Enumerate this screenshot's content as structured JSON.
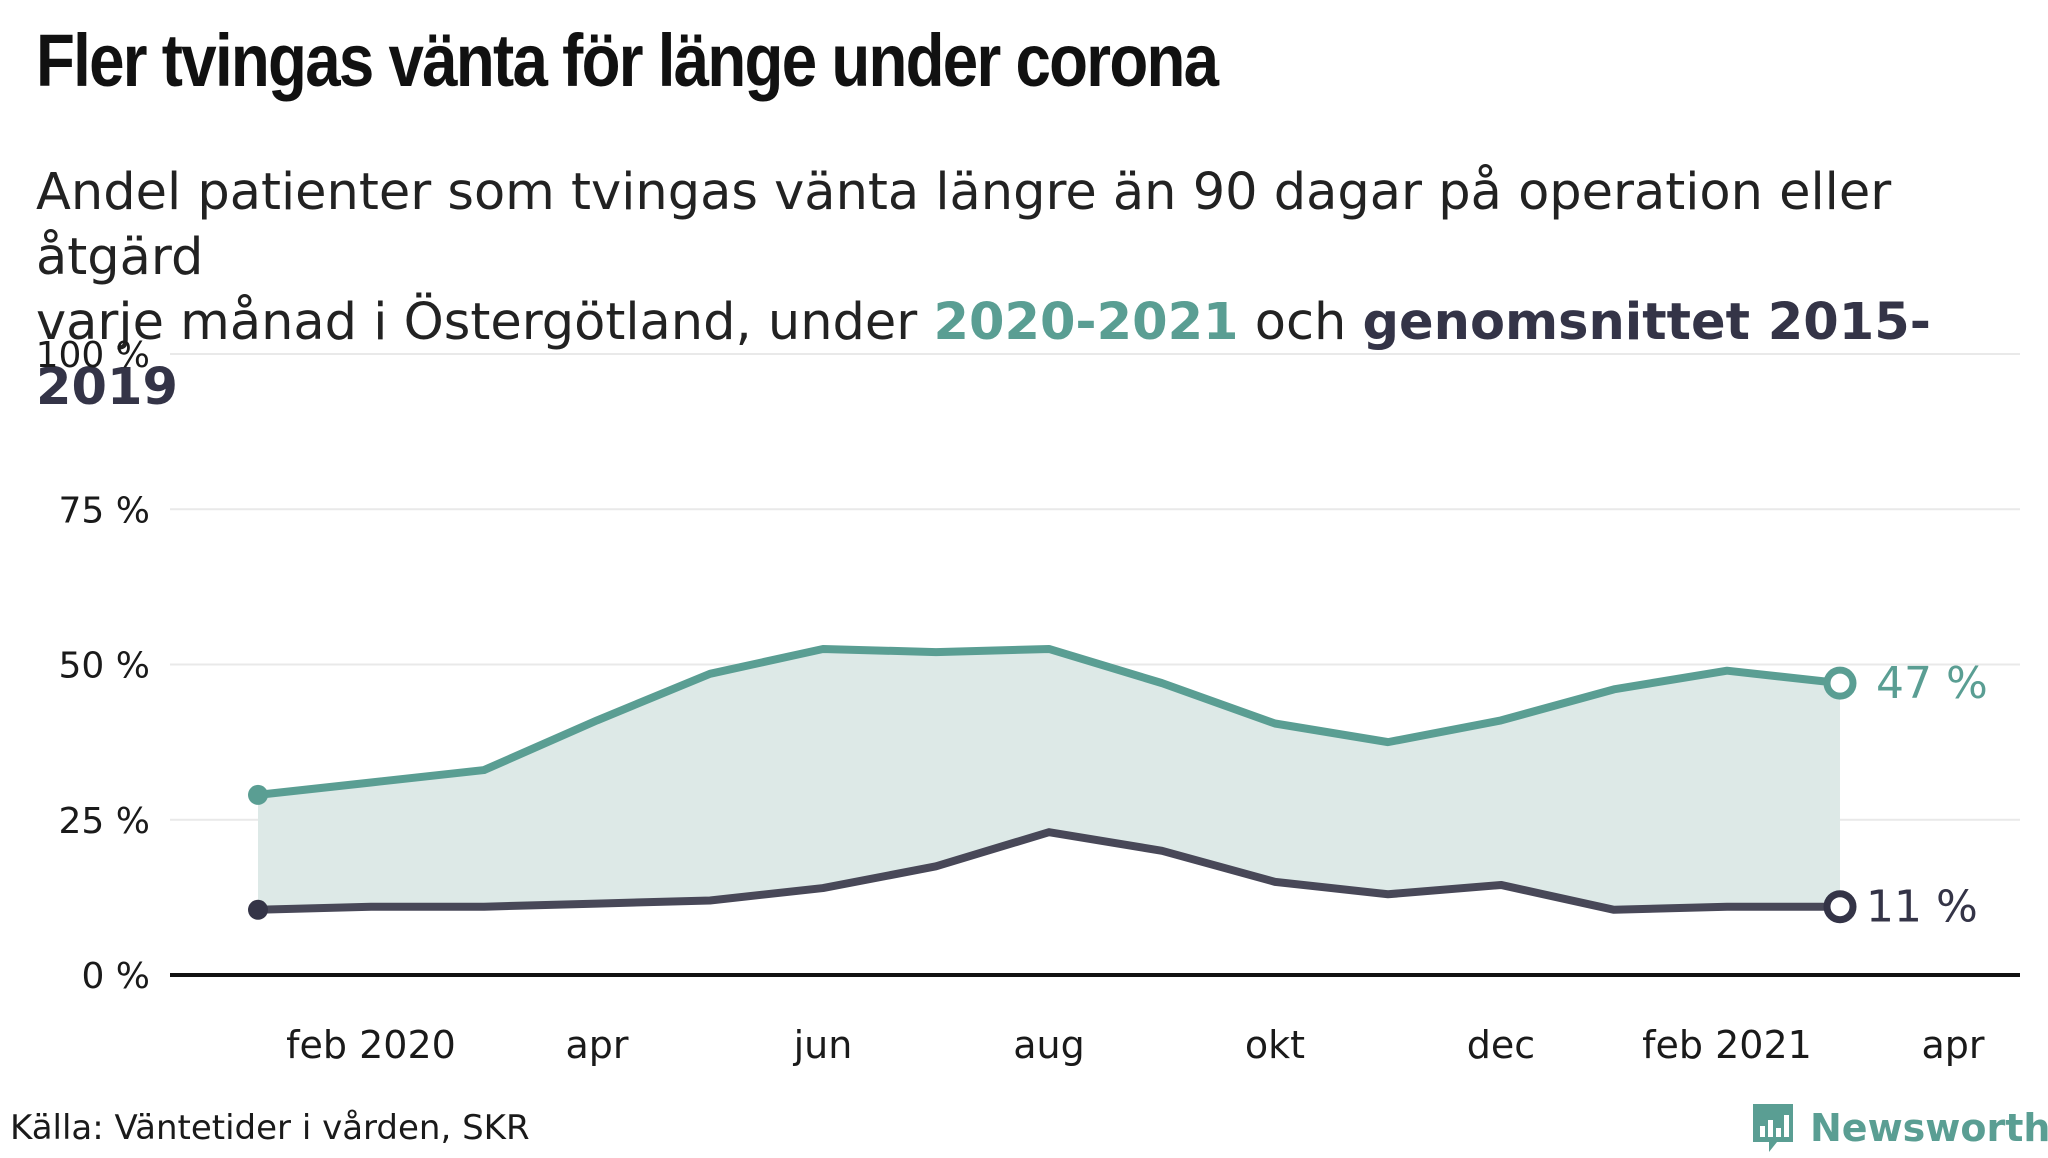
{
  "title": "Fler tvingas vänta för länge under corona",
  "subtitle": {
    "line1": "Andel patienter som tvingas vänta längre än 90 dagar på operation eller åtgärd",
    "line2_prefix": "varje månad i Östergötland, under ",
    "highlight_2020": "2020-2021",
    "line2_mid": " och ",
    "highlight_avg": "genomsnittet 2015-2019"
  },
  "source": "Källa: Väntetider i vården, SKR",
  "brand": "Newsworthy",
  "colors": {
    "series_2020": "#5a9e93",
    "series_avg": "#484858",
    "band_fill": "#dde9e7",
    "grid": "#e9e9e9",
    "axis": "#111111"
  },
  "chart_data": {
    "type": "line",
    "x_ticks": [
      "feb 2020",
      "apr",
      "jun",
      "aug",
      "okt",
      "dec",
      "feb 2021",
      "apr"
    ],
    "x": [
      "2020-01",
      "2020-02",
      "2020-03",
      "2020-04",
      "2020-05",
      "2020-06",
      "2020-07",
      "2020-08",
      "2020-09",
      "2020-10",
      "2020-11",
      "2020-12",
      "2021-01",
      "2021-02",
      "2021-03"
    ],
    "y_ticks": [
      "0 %",
      "25 %",
      "50 %",
      "75 %",
      "100 %"
    ],
    "ylim": [
      0,
      100
    ],
    "series": [
      {
        "name": "2020-2021",
        "values": [
          29,
          31,
          33,
          41,
          48.5,
          52.5,
          52,
          52.5,
          47,
          40.5,
          37.5,
          41,
          46,
          49,
          47
        ],
        "end_label": "47 %"
      },
      {
        "name": "genomsnittet 2015-2019",
        "values": [
          10.5,
          11,
          11,
          11.5,
          12,
          14,
          17.5,
          23,
          20,
          15,
          13,
          14.5,
          10.5,
          11,
          11
        ],
        "end_label": "11 %"
      }
    ],
    "shaded_between_series": true,
    "grid": true
  }
}
